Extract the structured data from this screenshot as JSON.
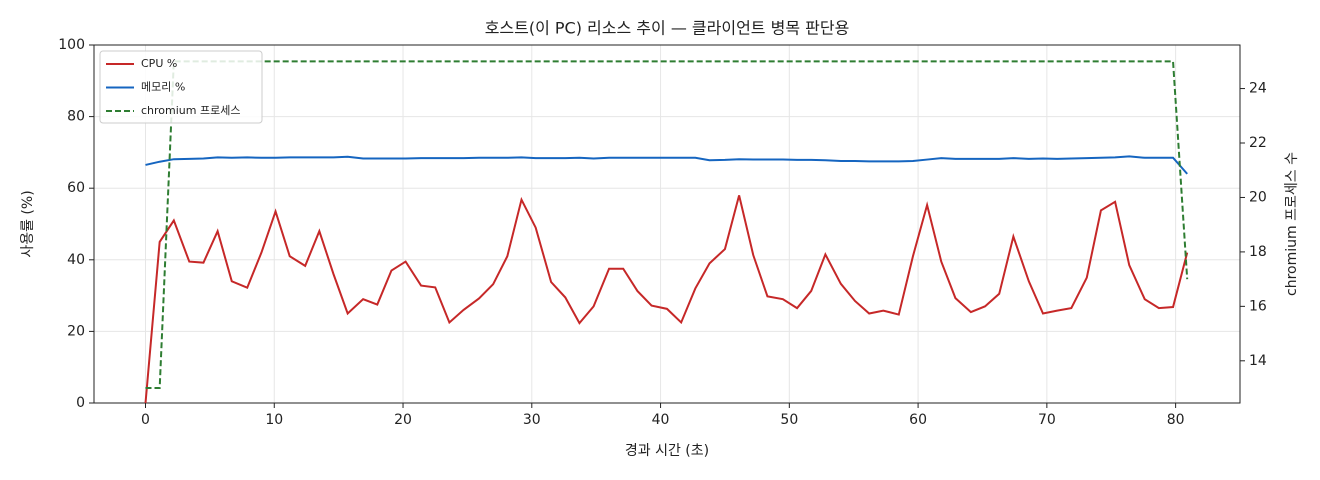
{
  "chart_data": {
    "type": "line",
    "title": "호스트(이 PC) 리소스 추이 — 클라이언트 병목 판단용",
    "x_label": "경과 시간 (초)",
    "y_label": "사용률 (%)",
    "y2_label": "chromium 프로세스 수",
    "x": [
      0,
      1.1,
      2.2,
      3.4,
      4.5,
      5.6,
      6.7,
      7.9,
      9.0,
      10.1,
      11.2,
      12.4,
      13.5,
      14.6,
      15.7,
      16.9,
      18.0,
      19.1,
      20.2,
      21.4,
      22.5,
      23.6,
      24.7,
      25.9,
      27.0,
      28.1,
      29.2,
      30.3,
      31.5,
      32.6,
      33.7,
      34.8,
      36.0,
      37.1,
      38.2,
      39.3,
      40.5,
      41.6,
      42.7,
      43.8,
      45.0,
      46.1,
      47.2,
      48.3,
      49.5,
      50.6,
      51.7,
      52.8,
      54.0,
      55.1,
      56.2,
      57.3,
      58.5,
      59.6,
      60.7,
      61.8,
      62.9,
      64.1,
      65.2,
      66.3,
      67.4,
      68.6,
      69.7,
      70.8,
      71.9,
      73.1,
      74.2,
      75.3,
      76.4,
      77.6,
      78.7,
      79.8,
      80.9
    ],
    "series": [
      {
        "name": "CPU %",
        "color": "#c62828",
        "axis": "y",
        "dash": false,
        "values": [
          0,
          45,
          51,
          39.5,
          39.2,
          48,
          34,
          32.2,
          42,
          53.5,
          41,
          38.3,
          48,
          36,
          25,
          29,
          27.5,
          37,
          39.5,
          32.8,
          32.3,
          22.5,
          26,
          29.2,
          33.2,
          41,
          56.8,
          49,
          33.8,
          29.5,
          22.3,
          27,
          37.5,
          37.5,
          31.3,
          27.2,
          26.3,
          22.5,
          32,
          39,
          43,
          58,
          41.3,
          29.8,
          29,
          26.5,
          31.3,
          41.5,
          33.3,
          28.5,
          25,
          25.8,
          24.7,
          41,
          55.3,
          39.5,
          29.3,
          25.4,
          27,
          30.5,
          46.5,
          34,
          25,
          25.8,
          26.5,
          35,
          53.8,
          56.2,
          38.5,
          29,
          26.5,
          26.8,
          42
        ]
      },
      {
        "name": "메모리 %",
        "color": "#1565c0",
        "axis": "y",
        "dash": false,
        "values": [
          66.5,
          67.4,
          68.1,
          68.2,
          68.3,
          68.6,
          68.5,
          68.6,
          68.5,
          68.5,
          68.6,
          68.6,
          68.6,
          68.6,
          68.8,
          68.3,
          68.3,
          68.3,
          68.3,
          68.4,
          68.4,
          68.4,
          68.4,
          68.5,
          68.5,
          68.5,
          68.6,
          68.4,
          68.4,
          68.4,
          68.5,
          68.3,
          68.5,
          68.5,
          68.5,
          68.5,
          68.5,
          68.5,
          68.5,
          67.8,
          67.9,
          68.1,
          68.0,
          68.0,
          68.0,
          67.9,
          67.9,
          67.8,
          67.6,
          67.6,
          67.5,
          67.5,
          67.5,
          67.6,
          68.0,
          68.4,
          68.2,
          68.2,
          68.2,
          68.2,
          68.4,
          68.2,
          68.3,
          68.2,
          68.3,
          68.4,
          68.5,
          68.6,
          68.9,
          68.5,
          68.5,
          68.5,
          64
        ]
      },
      {
        "name": "chromium 프로세스",
        "color": "#2e7d32",
        "axis": "y2",
        "dash": true,
        "values": [
          13,
          13,
          25,
          25,
          25,
          25,
          25,
          25,
          25,
          25,
          25,
          25,
          25,
          25,
          25,
          25,
          25,
          25,
          25,
          25,
          25,
          25,
          25,
          25,
          25,
          25,
          25,
          25,
          25,
          25,
          25,
          25,
          25,
          25,
          25,
          25,
          25,
          25,
          25,
          25,
          25,
          25,
          25,
          25,
          25,
          25,
          25,
          25,
          25,
          25,
          25,
          25,
          25,
          25,
          25,
          25,
          25,
          25,
          25,
          25,
          25,
          25,
          25,
          25,
          25,
          25,
          25,
          25,
          25,
          25,
          25,
          25,
          17
        ]
      }
    ],
    "xlim": [
      -4,
      85
    ],
    "xticks": [
      0,
      10,
      20,
      30,
      40,
      50,
      60,
      70,
      80
    ],
    "ylim": [
      0,
      100
    ],
    "yticks": [
      0,
      20,
      40,
      60,
      80,
      100
    ],
    "y2lim": [
      12.45,
      25.6
    ],
    "y2ticks": [
      14,
      16,
      18,
      20,
      22,
      24
    ],
    "grid": true,
    "legend": "upper left"
  }
}
